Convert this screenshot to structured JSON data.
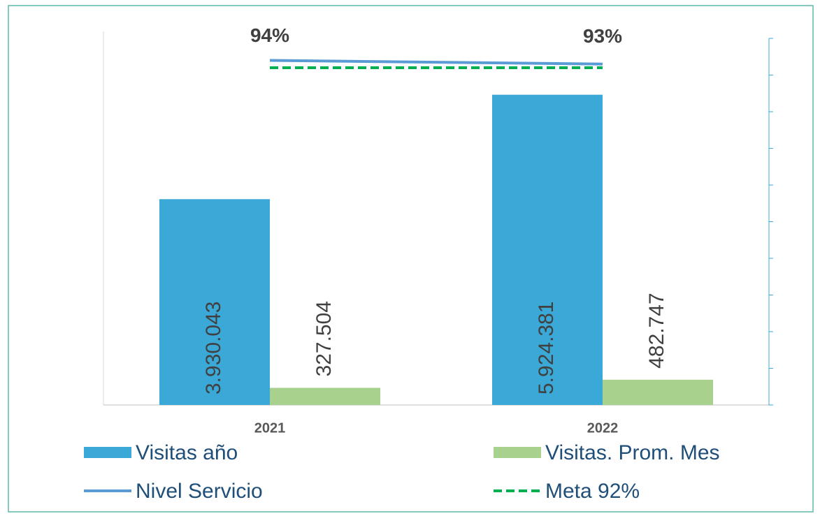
{
  "chart_data": {
    "type": "bar",
    "categories": [
      "2021",
      "2022"
    ],
    "series": [
      {
        "name": "Visitas año",
        "color": "#3aa9d8",
        "values": [
          3930043,
          5924381
        ],
        "value_labels": [
          "3.930.043",
          "5.924.381"
        ]
      },
      {
        "name": "Visitas. Prom. Mes",
        "color": "#a9d18e",
        "values": [
          327504,
          482747
        ],
        "value_labels": [
          "327.504",
          "482.747"
        ]
      },
      {
        "name": "Nivel Servicio",
        "type": "line",
        "axis": "y2",
        "color": "#5b9bd5",
        "values": [
          94,
          93
        ],
        "value_labels": [
          "94%",
          "93%"
        ]
      },
      {
        "name": "Meta 92%",
        "type": "line",
        "axis": "y2",
        "dashed": true,
        "color": "#00b050",
        "values": [
          92,
          92
        ]
      }
    ],
    "ylim": [
      0,
      7000000
    ],
    "y2lim": [
      0,
      100
    ],
    "y2ticks": [
      0,
      10,
      20,
      30,
      40,
      50,
      60,
      70,
      80,
      90,
      100
    ]
  }
}
